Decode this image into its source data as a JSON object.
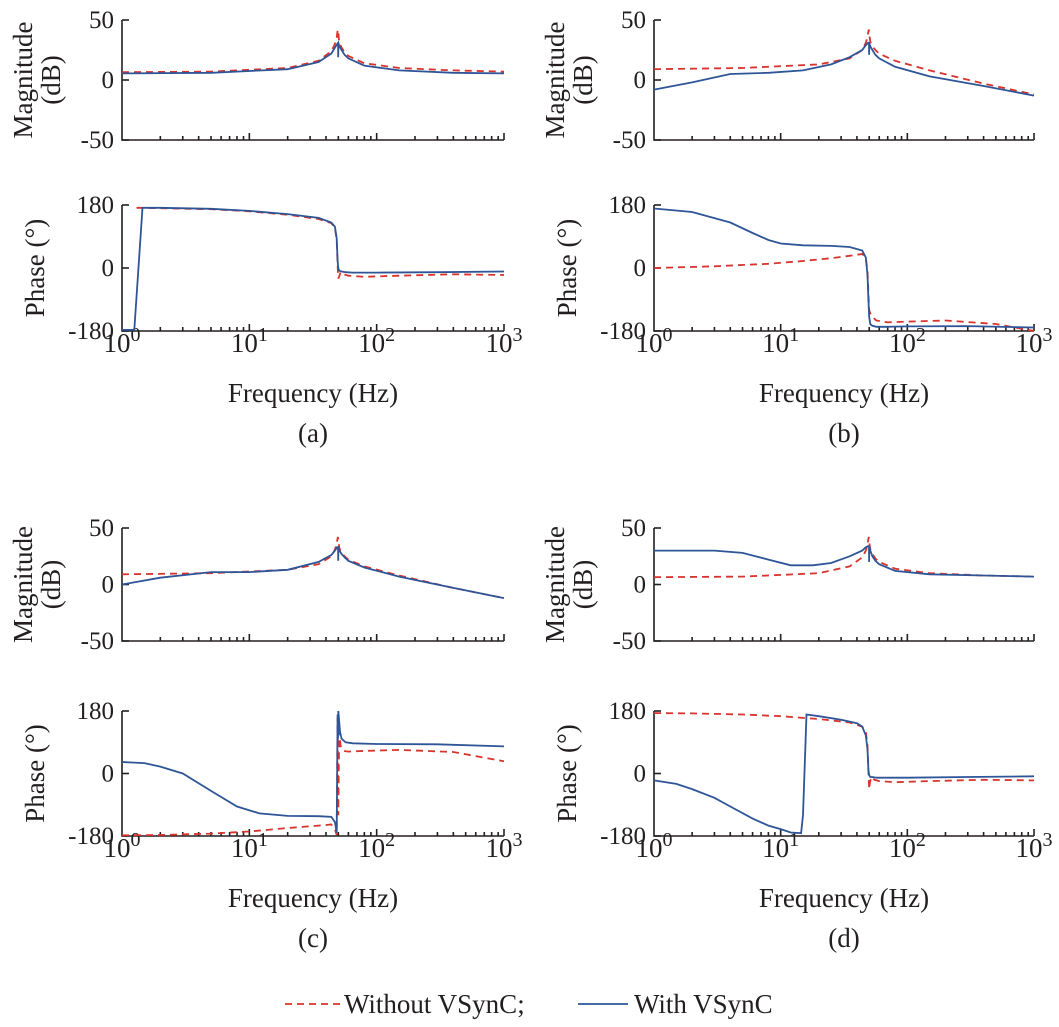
{
  "legend": {
    "items": [
      {
        "label": "Without VSynC;",
        "color": "#d9342b",
        "style": "dashed"
      },
      {
        "label": "With VSynC",
        "color": "#2e5597",
        "style": "solid"
      }
    ]
  },
  "chart_data": [
    {
      "type": "line",
      "id": "a-mag",
      "caption": "(a)",
      "ylabel": [
        "Magnitude",
        "(dB)"
      ],
      "ylim": [
        -50,
        50
      ],
      "yticks": [
        "50",
        "0",
        "-50"
      ],
      "xscale": "log",
      "xlim": [
        1,
        1000
      ],
      "xticks": [],
      "xlabel": "",
      "series": [
        {
          "name": "Without VSynC",
          "x": [
            1,
            5,
            20,
            35,
            44,
            47,
            48.5,
            49.2,
            49.6,
            50,
            50.4,
            51,
            53,
            56,
            60,
            80,
            150,
            400,
            1000
          ],
          "y": [
            6.5,
            7,
            10,
            16,
            24,
            30,
            35,
            40,
            42,
            40,
            35,
            31,
            27,
            23,
            20,
            14,
            10,
            8,
            7
          ]
        },
        {
          "name": "With VSynC",
          "x": [
            1,
            5,
            20,
            35,
            44,
            47,
            49,
            49.8,
            49.9,
            50.1,
            50.3,
            51,
            53,
            56,
            60,
            80,
            150,
            400,
            1000
          ],
          "y": [
            5.5,
            6,
            9,
            15,
            22,
            27,
            30,
            31,
            19,
            31,
            30,
            28,
            25,
            21,
            18,
            12,
            8,
            6,
            5.5
          ]
        }
      ]
    },
    {
      "type": "line",
      "id": "a-phase",
      "caption": "(a)",
      "ylabel": [
        "Phase (°)"
      ],
      "ylim": [
        -180,
        180
      ],
      "yticks": [
        "180",
        "0",
        "-180"
      ],
      "xscale": "log",
      "xlim": [
        1,
        1000
      ],
      "xticks": [
        "10^0",
        "10^1",
        "10^2",
        "10^3"
      ],
      "xlabel": "Frequency (Hz)",
      "series": [
        {
          "name": "Without VSynC",
          "x": [
            1.3,
            2,
            5,
            10,
            20,
            35,
            44,
            47,
            48.5,
            49.3,
            50,
            50.7,
            52,
            55,
            60,
            80,
            150,
            400,
            1000
          ],
          "y": [
            172,
            171,
            168,
            162,
            152,
            140,
            128,
            115,
            80,
            10,
            -30,
            -25,
            -12,
            -18,
            -22,
            -25,
            -22,
            -18,
            -20
          ]
        },
        {
          "name": "With VSynC",
          "x": [
            1,
            1.25,
            1.45,
            2,
            5,
            10,
            20,
            35,
            44,
            47,
            48.5,
            49.3,
            50,
            51,
            53,
            57,
            65,
            100,
            300,
            1000
          ],
          "y": [
            -177,
            -177,
            172,
            172,
            169,
            163,
            154,
            143,
            130,
            118,
            85,
            20,
            -2,
            -8,
            -10,
            -12,
            -13,
            -13,
            -12,
            -10
          ]
        }
      ]
    },
    {
      "type": "line",
      "id": "b-mag",
      "caption": "(b)",
      "ylabel": [
        "Magnitude",
        "(dB)"
      ],
      "ylim": [
        -50,
        50
      ],
      "yticks": [
        "50",
        "0",
        "-50"
      ],
      "xscale": "log",
      "xlim": [
        1,
        1000
      ],
      "xticks": [],
      "xlabel": "",
      "series": [
        {
          "name": "Without VSynC",
          "x": [
            1,
            5,
            20,
            35,
            44,
            47,
            48.5,
            49.2,
            49.6,
            50,
            50.4,
            51,
            53,
            56,
            60,
            80,
            150,
            400,
            1000
          ],
          "y": [
            9,
            10,
            13,
            18,
            25,
            31,
            36,
            40,
            42,
            40,
            36,
            32,
            28,
            25,
            22,
            16,
            8,
            -3,
            -12
          ]
        },
        {
          "name": "With VSynC",
          "x": [
            1,
            2,
            4,
            8,
            15,
            25,
            35,
            44,
            47,
            49,
            49.8,
            49.9,
            50.1,
            50.3,
            51,
            53,
            56,
            60,
            80,
            150,
            400,
            1000
          ],
          "y": [
            -8,
            -2,
            5,
            6,
            8,
            13,
            19,
            25,
            29,
            31,
            31,
            21,
            31,
            30,
            28,
            25,
            21,
            18,
            11,
            3,
            -5,
            -13
          ]
        }
      ]
    },
    {
      "type": "line",
      "id": "b-phase",
      "caption": "(b)",
      "ylabel": [
        "Phase (°)"
      ],
      "ylim": [
        -180,
        180
      ],
      "yticks": [
        "180",
        "0",
        "-180"
      ],
      "xscale": "log",
      "xlim": [
        1,
        1000
      ],
      "xticks": [
        "10^0",
        "10^1",
        "10^2",
        "10^3"
      ],
      "xlabel": "Frequency (Hz)",
      "series": [
        {
          "name": "Without VSynC",
          "x": [
            1,
            3,
            8,
            15,
            25,
            35,
            44,
            47,
            48.5,
            49.3,
            50,
            51,
            53,
            57,
            70,
            100,
            200,
            500,
            1000
          ],
          "y": [
            0,
            5,
            12,
            20,
            28,
            35,
            40,
            30,
            -10,
            -70,
            -120,
            -130,
            -140,
            -150,
            -155,
            -153,
            -150,
            -160,
            -185
          ]
        },
        {
          "name": "With VSynC",
          "x": [
            1,
            2,
            4,
            6,
            8,
            10,
            15,
            25,
            35,
            44,
            47,
            48.5,
            49.3,
            50,
            51,
            53,
            57,
            70,
            100,
            300,
            1000
          ],
          "y": [
            170,
            160,
            130,
            100,
            80,
            70,
            65,
            63,
            60,
            50,
            30,
            -20,
            -90,
            -140,
            -160,
            -165,
            -168,
            -168,
            -167,
            -166,
            -170
          ]
        }
      ]
    },
    {
      "type": "line",
      "id": "c-mag",
      "caption": "(c)",
      "ylabel": [
        "Magnitude",
        "(dB)"
      ],
      "ylim": [
        -50,
        50
      ],
      "yticks": [
        "50",
        "0",
        "-50"
      ],
      "xscale": "log",
      "xlim": [
        1,
        1000
      ],
      "xticks": [],
      "xlabel": "",
      "series": [
        {
          "name": "Without VSynC",
          "x": [
            1,
            5,
            20,
            35,
            44,
            47,
            48.5,
            49.2,
            49.6,
            50,
            50.4,
            51,
            53,
            56,
            60,
            80,
            150,
            400,
            1000
          ],
          "y": [
            9,
            10,
            13,
            18,
            25,
            31,
            36,
            40,
            42,
            40,
            36,
            32,
            28,
            25,
            22,
            16,
            8,
            -3,
            -12
          ]
        },
        {
          "name": "With VSynC",
          "x": [
            1,
            2,
            5,
            10,
            20,
            35,
            44,
            47,
            49,
            49.8,
            49.9,
            50.1,
            50.3,
            51,
            53,
            56,
            60,
            80,
            150,
            400,
            1000
          ],
          "y": [
            0,
            6,
            11,
            11,
            13,
            20,
            26,
            30,
            33,
            33,
            21,
            33,
            32,
            30,
            27,
            24,
            21,
            15,
            7,
            -3,
            -12
          ]
        }
      ]
    },
    {
      "type": "line",
      "id": "c-phase",
      "caption": "(c)",
      "ylabel": [
        "Phase (°)"
      ],
      "ylim": [
        -180,
        180
      ],
      "yticks": [
        "180",
        "0",
        "-180"
      ],
      "xscale": "log",
      "xlim": [
        1,
        1000
      ],
      "xticks": [
        "10^0",
        "10^1",
        "10^2",
        "10^3"
      ],
      "xlabel": "Frequency (Hz)",
      "series": [
        {
          "name": "Without VSynC",
          "x": [
            1,
            2,
            5,
            10,
            20,
            35,
            44,
            47,
            48.5,
            49.3,
            49.7,
            50,
            50.5,
            51,
            52,
            55,
            60,
            80,
            150,
            400,
            1000
          ],
          "y": [
            -178,
            -177,
            -173,
            -167,
            -157,
            -150,
            -147,
            -160,
            -177,
            160,
            0,
            -120,
            40,
            120,
            80,
            65,
            63,
            65,
            68,
            62,
            35
          ]
        },
        {
          "name": "With VSynC",
          "x": [
            1,
            1.5,
            2,
            3,
            5,
            8,
            12,
            20,
            35,
            44,
            47,
            48.5,
            49.3,
            49.7,
            50,
            50.5,
            51.5,
            53,
            57,
            65,
            100,
            300,
            1000
          ],
          "y": [
            33,
            30,
            20,
            0,
            -50,
            -95,
            -115,
            -122,
            -123,
            -125,
            -140,
            -170,
            170,
            100,
            180,
            160,
            120,
            100,
            90,
            87,
            85,
            84,
            78
          ]
        }
      ]
    },
    {
      "type": "line",
      "id": "d-mag",
      "caption": "(d)",
      "ylabel": [
        "Magnitude",
        "(dB)"
      ],
      "ylim": [
        -50,
        50
      ],
      "yticks": [
        "50",
        "0",
        "-50"
      ],
      "xscale": "log",
      "xlim": [
        1,
        1000
      ],
      "xticks": [],
      "xlabel": "",
      "series": [
        {
          "name": "Without VSynC",
          "x": [
            1,
            5,
            20,
            35,
            44,
            47,
            48.5,
            49.2,
            49.6,
            50,
            50.4,
            51,
            53,
            56,
            60,
            80,
            150,
            400,
            1000
          ],
          "y": [
            6.5,
            7,
            10,
            16,
            24,
            30,
            35,
            40,
            42,
            40,
            35,
            31,
            27,
            23,
            20,
            14,
            10,
            8,
            7
          ]
        },
        {
          "name": "With VSynC",
          "x": [
            1,
            2,
            3,
            5,
            8,
            12,
            18,
            25,
            35,
            44,
            47,
            49,
            49.8,
            49.9,
            50.1,
            50.3,
            51,
            53,
            56,
            60,
            80,
            150,
            400,
            1000
          ],
          "y": [
            30,
            30,
            30,
            28,
            22,
            17,
            17,
            19,
            25,
            30,
            33,
            34,
            34,
            20,
            34,
            33,
            30,
            25,
            21,
            18,
            12,
            9,
            8,
            7
          ]
        }
      ]
    },
    {
      "type": "line",
      "id": "d-phase",
      "caption": "(d)",
      "ylabel": [
        "Phase (°)"
      ],
      "ylim": [
        -180,
        180
      ],
      "yticks": [
        "180",
        "0",
        "-180"
      ],
      "xscale": "log",
      "xlim": [
        1,
        1000
      ],
      "xticks": [
        "10^0",
        "10^1",
        "10^2",
        "10^3"
      ],
      "xlabel": "Frequency (Hz)",
      "series": [
        {
          "name": "Without VSynC",
          "x": [
            1,
            2,
            5,
            10,
            20,
            35,
            44,
            47,
            48.5,
            49.3,
            50,
            50.7,
            52,
            55,
            60,
            80,
            150,
            400,
            1000
          ],
          "y": [
            174,
            173,
            170,
            165,
            157,
            147,
            135,
            120,
            80,
            5,
            -45,
            -25,
            -10,
            -18,
            -22,
            -25,
            -22,
            -18,
            -20
          ]
        },
        {
          "name": "With VSynC",
          "x": [
            1,
            1.5,
            2,
            3,
            4,
            6,
            8,
            10,
            12,
            14.5,
            15,
            16,
            20,
            30,
            40,
            44,
            47,
            48.5,
            49.3,
            50,
            51,
            53,
            57,
            65,
            100,
            300,
            1000
          ],
          "y": [
            -20,
            -30,
            -45,
            -70,
            -95,
            -130,
            -150,
            -160,
            -170,
            -172,
            -120,
            170,
            165,
            155,
            145,
            135,
            110,
            70,
            10,
            -5,
            -10,
            -10,
            -12,
            -12,
            -12,
            -10,
            -8
          ]
        }
      ]
    }
  ]
}
